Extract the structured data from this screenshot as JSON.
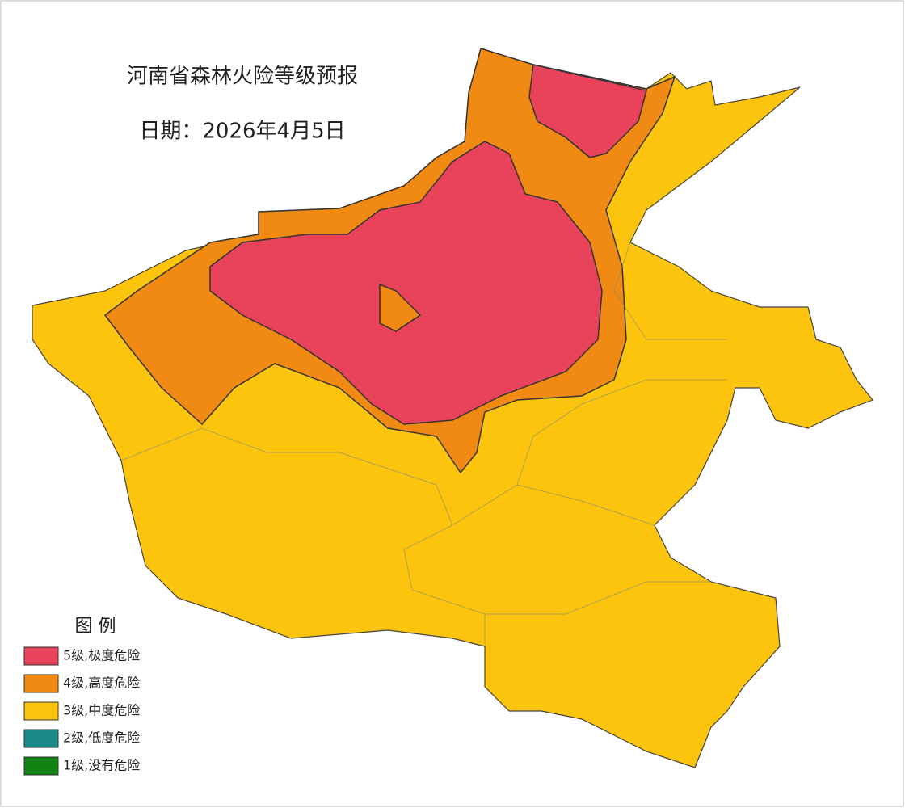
{
  "title": "河南省森林火险等级预报",
  "date": "日期：2026年4月5日",
  "legend": {
    "title": "图  例",
    "items": [
      {
        "label": "5级,极度危险",
        "color": "#e8435a"
      },
      {
        "label": "4级,高度危险",
        "color": "#f08a12"
      },
      {
        "label": "3级,中度危险",
        "color": "#fcc40c"
      },
      {
        "label": "2级,低度危险",
        "color": "#1b8a8a"
      },
      {
        "label": "1级,没有危险",
        "color": "#128212"
      }
    ]
  }
}
